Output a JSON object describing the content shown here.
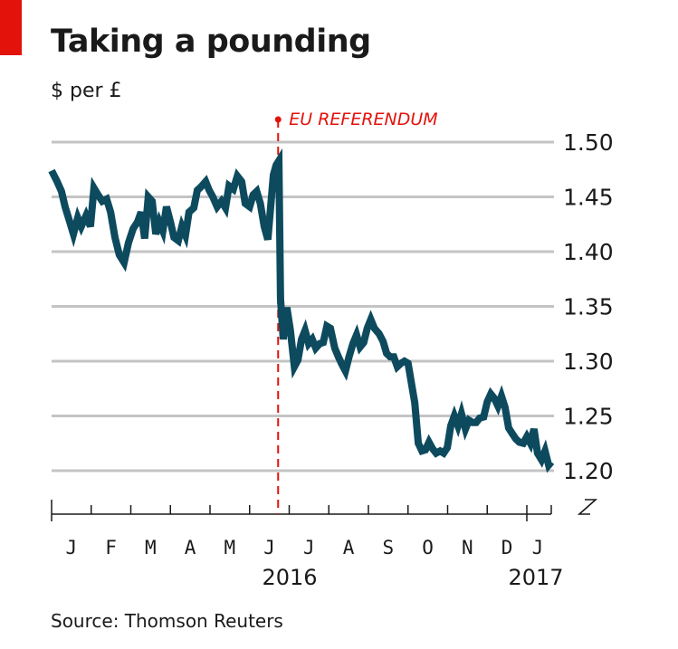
{
  "header": {
    "title": "Taking a pounding",
    "subtitle": "$ per £"
  },
  "footer": {
    "source": "Source: Thomson Reuters"
  },
  "colors": {
    "line": "#0d4a5e",
    "accent": "#e3120b",
    "grid": "#c4c4c4",
    "axis": "#1a1a1a"
  },
  "chart_data": {
    "type": "line",
    "title": "Taking a pounding",
    "subtitle": "$ per £",
    "xlabel": "",
    "ylabel": "$ per £",
    "x_units": "months since 1 Jan 2016",
    "xlim": [
      0,
      12.6
    ],
    "ylim": [
      1.2,
      1.5
    ],
    "y_axis_position": "right",
    "y_axis_broken": true,
    "grid": true,
    "y_ticks": [
      1.2,
      1.25,
      1.3,
      1.35,
      1.4,
      1.45,
      1.5
    ],
    "y_tick_labels": [
      "1.20",
      "1.25",
      "1.30",
      "1.35",
      "1.40",
      "1.45",
      "1.50"
    ],
    "x_ticks": [
      0,
      1,
      2,
      3,
      4,
      5,
      6,
      7,
      8,
      9,
      10,
      11,
      12
    ],
    "x_tick_labels": [
      "J",
      "F",
      "M",
      "A",
      "M",
      "J",
      "J",
      "A",
      "S",
      "O",
      "N",
      "D",
      "J"
    ],
    "year_labels": [
      {
        "x": 5.5,
        "label": "2016"
      },
      {
        "x": 12.0,
        "label": "2017"
      }
    ],
    "annotations": [
      {
        "x": 5.72,
        "label": "EU REFERENDUM",
        "style": "dashed-vertical-line"
      }
    ],
    "series": [
      {
        "name": "$ per £",
        "x": [
          0.0,
          0.14,
          0.25,
          0.34,
          0.46,
          0.55,
          0.66,
          0.75,
          0.87,
          0.98,
          1.07,
          1.17,
          1.28,
          1.39,
          1.49,
          1.6,
          1.71,
          1.83,
          1.94,
          2.06,
          2.17,
          2.26,
          2.35,
          2.44,
          2.54,
          2.63,
          2.72,
          2.81,
          2.9,
          3.0,
          3.09,
          3.2,
          3.29,
          3.38,
          3.47,
          3.59,
          3.68,
          3.77,
          3.89,
          3.98,
          4.07,
          4.18,
          4.29,
          4.39,
          4.48,
          4.59,
          4.69,
          4.8,
          4.89,
          5.0,
          5.09,
          5.18,
          5.27,
          5.37,
          5.46,
          5.53,
          5.6,
          5.67,
          5.74,
          5.78,
          5.85,
          5.94,
          6.03,
          6.13,
          6.22,
          6.31,
          6.4,
          6.49,
          6.58,
          6.67,
          6.77,
          6.86,
          6.95,
          7.04,
          7.15,
          7.24,
          7.33,
          7.42,
          7.51,
          7.61,
          7.7,
          7.79,
          7.88,
          7.97,
          8.06,
          8.15,
          8.27,
          8.37,
          8.46,
          8.55,
          8.64,
          8.73,
          8.82,
          8.91,
          9.0,
          9.1,
          9.17,
          9.26,
          9.35,
          9.44,
          9.53,
          9.62,
          9.71,
          9.81,
          9.9,
          9.99,
          10.08,
          10.17,
          10.26,
          10.35,
          10.45,
          10.54,
          10.63,
          10.72,
          10.81,
          10.91,
          11.0,
          11.09,
          11.18,
          11.27,
          11.36,
          11.45,
          11.54,
          11.63,
          11.72,
          11.81,
          11.91,
          12.0,
          12.09,
          12.18,
          12.27,
          12.37,
          12.46,
          12.55,
          12.62
        ],
        "values": [
          1.474,
          1.464,
          1.455,
          1.441,
          1.427,
          1.416,
          1.431,
          1.423,
          1.433,
          1.423,
          1.458,
          1.452,
          1.446,
          1.448,
          1.436,
          1.413,
          1.397,
          1.39,
          1.408,
          1.421,
          1.427,
          1.436,
          1.412,
          1.45,
          1.446,
          1.416,
          1.427,
          1.419,
          1.441,
          1.427,
          1.413,
          1.41,
          1.423,
          1.415,
          1.436,
          1.44,
          1.456,
          1.459,
          1.464,
          1.456,
          1.45,
          1.441,
          1.446,
          1.44,
          1.46,
          1.457,
          1.469,
          1.464,
          1.444,
          1.441,
          1.452,
          1.455,
          1.444,
          1.423,
          1.411,
          1.44,
          1.47,
          1.479,
          1.483,
          1.357,
          1.32,
          1.349,
          1.328,
          1.295,
          1.301,
          1.32,
          1.328,
          1.316,
          1.32,
          1.312,
          1.316,
          1.317,
          1.332,
          1.33,
          1.312,
          1.304,
          1.297,
          1.291,
          1.304,
          1.316,
          1.324,
          1.313,
          1.317,
          1.33,
          1.338,
          1.33,
          1.325,
          1.318,
          1.307,
          1.304,
          1.304,
          1.295,
          1.298,
          1.3,
          1.298,
          1.277,
          1.262,
          1.225,
          1.218,
          1.219,
          1.226,
          1.22,
          1.216,
          1.218,
          1.216,
          1.221,
          1.241,
          1.25,
          1.241,
          1.252,
          1.238,
          1.246,
          1.244,
          1.244,
          1.248,
          1.249,
          1.263,
          1.27,
          1.266,
          1.259,
          1.268,
          1.258,
          1.239,
          1.234,
          1.229,
          1.226,
          1.225,
          1.231,
          1.225,
          1.238,
          1.216,
          1.21,
          1.218,
          1.205,
          1.208
        ]
      }
    ]
  }
}
